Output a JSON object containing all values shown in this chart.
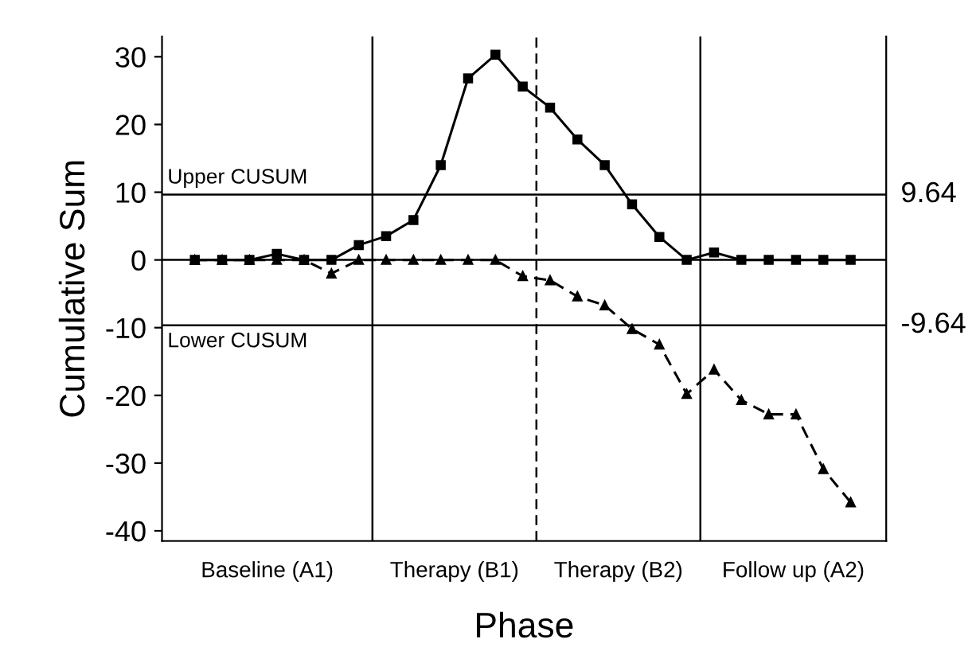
{
  "chart_data": {
    "type": "line",
    "xlabel": "Phase",
    "ylabel": "Cumulative Sum",
    "categories": [
      null,
      null,
      null,
      null,
      null,
      null,
      null,
      null,
      null,
      null,
      null,
      null,
      null,
      null,
      null,
      null,
      null,
      null,
      null,
      null,
      null,
      null,
      null,
      null,
      null
    ],
    "ylim": [
      -41.5,
      33
    ],
    "yticks": [
      -40,
      -30,
      -20,
      -10,
      0,
      10,
      20,
      30
    ],
    "series": [
      {
        "color": "#000000",
        "marker": "square",
        "line_style": "solid",
        "values": [
          0,
          0,
          0,
          0.9,
          0,
          0,
          2.2,
          3.5,
          5.9,
          14.0,
          26.8,
          30.3,
          25.6,
          22.5,
          17.8,
          14.0,
          8.2,
          3.4,
          0,
          1.1,
          0,
          0,
          0,
          0,
          0
        ]
      },
      {
        "color": "#000000",
        "marker": "triangle",
        "line_style": "dashed",
        "values": [
          0,
          0,
          0,
          0,
          0,
          -2.0,
          0,
          0,
          0,
          0,
          0,
          0,
          -2.4,
          -3.0,
          -5.4,
          -6.7,
          -10.2,
          -12.5,
          -19.8,
          -16.2,
          -20.7,
          -22.8,
          -22.8,
          -30.9,
          -35.8
        ]
      }
    ],
    "ref_lines": [
      {
        "axis": "y",
        "value": 9.64,
        "label": "9.64",
        "color": "#000000",
        "line_style": "solid"
      },
      {
        "axis": "y",
        "value": 0,
        "color": "#000000",
        "line_style": "solid"
      },
      {
        "axis": "y",
        "value": -9.64,
        "label": "-9.64",
        "color": "#000000",
        "line_style": "solid"
      }
    ],
    "annotations": [
      "Upper CUSUM",
      "Lower CUSUM",
      "Baseline (A1)",
      "Therapy (B1)",
      "Therapy (B2)",
      "Follow up (A2)"
    ],
    "grid": false,
    "legend": false
  }
}
